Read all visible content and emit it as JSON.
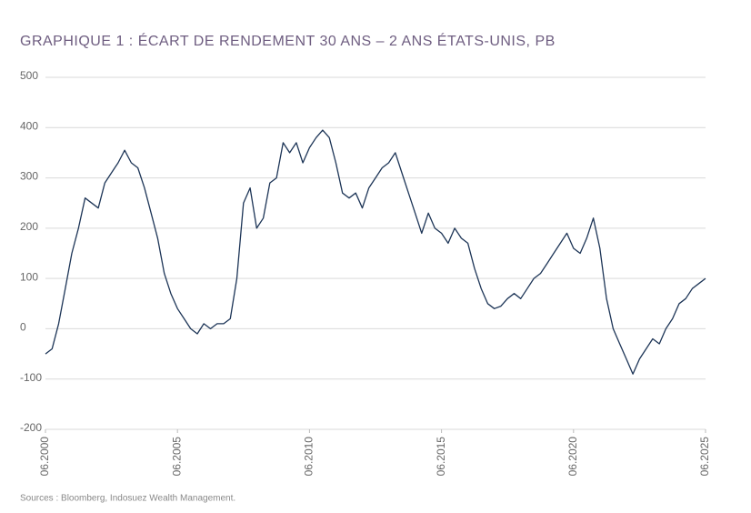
{
  "chart_data": {
    "type": "line",
    "title": "GRAPHIQUE 1 : ÉCART DE RENDEMENT 30 ANS – 2 ANS ÉTATS-UNIS, PB",
    "source": "Sources : Bloomberg, Indosuez Wealth Management.",
    "x": [
      "2000-06",
      "2000-09",
      "2000-12",
      "2001-03",
      "2001-06",
      "2001-09",
      "2001-12",
      "2002-03",
      "2002-06",
      "2002-09",
      "2002-12",
      "2003-03",
      "2003-06",
      "2003-09",
      "2003-12",
      "2004-03",
      "2004-06",
      "2004-09",
      "2004-12",
      "2005-03",
      "2005-06",
      "2005-09",
      "2005-12",
      "2006-03",
      "2006-06",
      "2006-09",
      "2006-12",
      "2007-03",
      "2007-06",
      "2007-09",
      "2007-12",
      "2008-03",
      "2008-06",
      "2008-09",
      "2008-12",
      "2009-03",
      "2009-06",
      "2009-09",
      "2009-12",
      "2010-03",
      "2010-06",
      "2010-09",
      "2010-12",
      "2011-03",
      "2011-06",
      "2011-09",
      "2011-12",
      "2012-03",
      "2012-06",
      "2012-09",
      "2012-12",
      "2013-03",
      "2013-06",
      "2013-09",
      "2013-12",
      "2014-03",
      "2014-06",
      "2014-09",
      "2014-12",
      "2015-03",
      "2015-06",
      "2015-09",
      "2015-12",
      "2016-03",
      "2016-06",
      "2016-09",
      "2016-12",
      "2017-03",
      "2017-06",
      "2017-09",
      "2017-12",
      "2018-03",
      "2018-06",
      "2018-09",
      "2018-12",
      "2019-03",
      "2019-06",
      "2019-09",
      "2019-12",
      "2020-03",
      "2020-06",
      "2020-09",
      "2020-12",
      "2021-03",
      "2021-06",
      "2021-09",
      "2021-12",
      "2022-03",
      "2022-06",
      "2022-09",
      "2022-12",
      "2023-03",
      "2023-06",
      "2023-09",
      "2023-12",
      "2024-03",
      "2024-06",
      "2024-09",
      "2024-12",
      "2025-03",
      "2025-06"
    ],
    "series": [
      {
        "name": "Écart 30 ans – 2 ans",
        "color": "#1d3557",
        "values": [
          -50,
          -40,
          10,
          80,
          150,
          200,
          260,
          250,
          240,
          290,
          310,
          330,
          355,
          330,
          320,
          280,
          230,
          180,
          110,
          70,
          40,
          20,
          0,
          -10,
          10,
          0,
          10,
          10,
          20,
          100,
          250,
          280,
          200,
          220,
          290,
          300,
          370,
          350,
          370,
          330,
          360,
          380,
          395,
          380,
          330,
          270,
          260,
          270,
          240,
          280,
          300,
          320,
          330,
          350,
          310,
          270,
          230,
          190,
          230,
          200,
          190,
          170,
          200,
          180,
          170,
          120,
          80,
          50,
          40,
          45,
          60,
          70,
          60,
          80,
          100,
          110,
          130,
          150,
          170,
          190,
          160,
          150,
          180,
          220,
          160,
          60,
          0,
          -30,
          -60,
          -90,
          -60,
          -40,
          -20,
          -30,
          0,
          20,
          50,
          60,
          80,
          90,
          100
        ]
      }
    ],
    "ylim": [
      -200,
      500
    ],
    "yticks": [
      -200,
      -100,
      0,
      100,
      200,
      300,
      400,
      500
    ],
    "xlim": [
      "2000-06",
      "2025-06"
    ],
    "xticks": [
      {
        "value": "2000-06",
        "label": "06.2000"
      },
      {
        "value": "2005-06",
        "label": "06.2005"
      },
      {
        "value": "2010-06",
        "label": "06.2010"
      },
      {
        "value": "2015-06",
        "label": "06.2015"
      },
      {
        "value": "2020-06",
        "label": "06.2020"
      },
      {
        "value": "2025-06",
        "label": "06.2025"
      }
    ],
    "grid": true
  }
}
